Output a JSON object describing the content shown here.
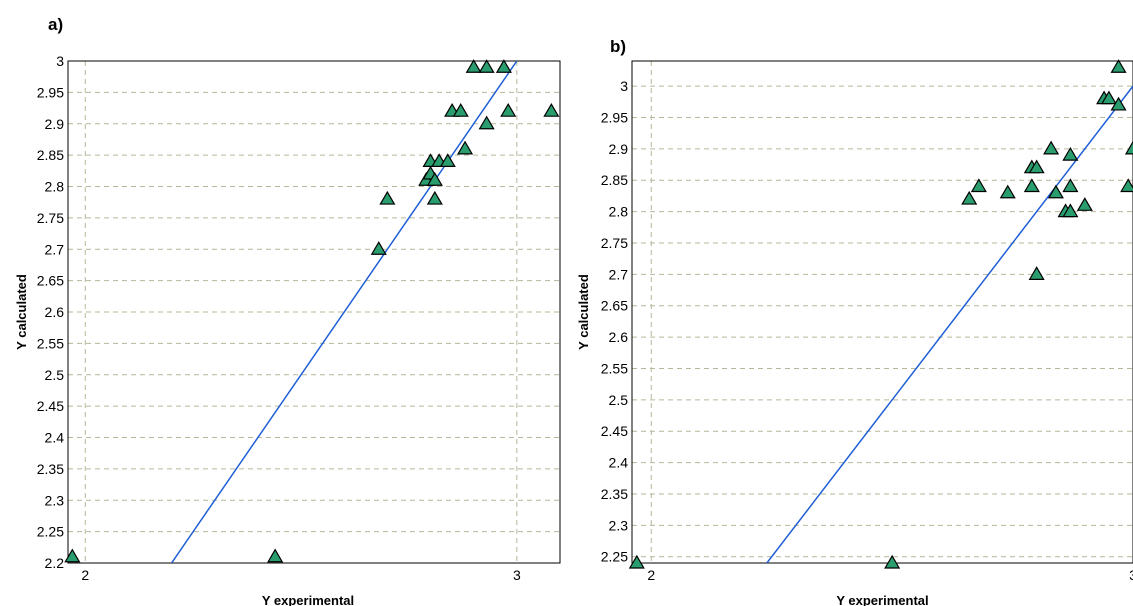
{
  "chart_data": [
    {
      "panel_label": "a)",
      "type": "scatter",
      "xlabel": "Y experimental",
      "ylabel": "Y calculated",
      "xlim": [
        1.96,
        3.1
      ],
      "ylim": [
        2.2,
        3.0
      ],
      "x_ticks": [
        "2",
        "3"
      ],
      "y_ticks": [
        "2.2",
        "2.25",
        "2.3",
        "2.35",
        "2.4",
        "2.45",
        "2.5",
        "2.55",
        "2.6",
        "2.65",
        "2.7",
        "2.75",
        "2.8",
        "2.85",
        "2.9",
        "2.95",
        "3"
      ],
      "grid": true,
      "marker": "triangle",
      "marker_color": "#2a9d6f",
      "line_color": "#1f5fd6",
      "fit_line": [
        [
          2.2,
          2.2
        ],
        [
          3.0,
          3.0
        ]
      ],
      "points": [
        [
          1.97,
          2.21
        ],
        [
          2.44,
          2.21
        ],
        [
          2.68,
          2.7
        ],
        [
          2.7,
          2.78
        ],
        [
          2.79,
          2.81
        ],
        [
          2.8,
          2.82
        ],
        [
          2.8,
          2.84
        ],
        [
          2.81,
          2.78
        ],
        [
          2.81,
          2.81
        ],
        [
          2.82,
          2.84
        ],
        [
          2.84,
          2.84
        ],
        [
          2.85,
          2.92
        ],
        [
          2.87,
          2.92
        ],
        [
          2.88,
          2.86
        ],
        [
          2.9,
          2.99
        ],
        [
          2.93,
          2.99
        ],
        [
          2.93,
          2.9
        ],
        [
          2.97,
          2.99
        ],
        [
          2.98,
          2.92
        ],
        [
          3.08,
          2.92
        ]
      ]
    },
    {
      "panel_label": "b)",
      "type": "scatter",
      "xlabel": "Y experimental",
      "ylabel": "Y calculated",
      "xlim": [
        1.96,
        3.0
      ],
      "ylim": [
        2.24,
        3.04
      ],
      "x_ticks": [
        "2",
        "3"
      ],
      "y_ticks": [
        "2.25",
        "2.3",
        "2.35",
        "2.4",
        "2.45",
        "2.5",
        "2.55",
        "2.6",
        "2.65",
        "2.7",
        "2.75",
        "2.8",
        "2.85",
        "2.9",
        "2.95",
        "3"
      ],
      "grid": true,
      "marker": "triangle",
      "marker_color": "#2a9d6f",
      "line_color": "#1f5fd6",
      "fit_line": [
        [
          2.24,
          2.24
        ],
        [
          3.0,
          3.0
        ]
      ],
      "points": [
        [
          1.97,
          2.24
        ],
        [
          2.5,
          2.24
        ],
        [
          2.66,
          2.82
        ],
        [
          2.68,
          2.84
        ],
        [
          2.74,
          2.83
        ],
        [
          2.79,
          2.84
        ],
        [
          2.79,
          2.87
        ],
        [
          2.8,
          2.87
        ],
        [
          2.8,
          2.7
        ],
        [
          2.83,
          2.9
        ],
        [
          2.84,
          2.83
        ],
        [
          2.86,
          2.8
        ],
        [
          2.87,
          2.89
        ],
        [
          2.87,
          2.84
        ],
        [
          2.87,
          2.8
        ],
        [
          2.9,
          2.81
        ],
        [
          2.94,
          2.98
        ],
        [
          2.95,
          2.98
        ],
        [
          2.97,
          3.03
        ],
        [
          2.97,
          2.97
        ],
        [
          2.99,
          2.84
        ],
        [
          3.0,
          2.9
        ]
      ]
    }
  ]
}
